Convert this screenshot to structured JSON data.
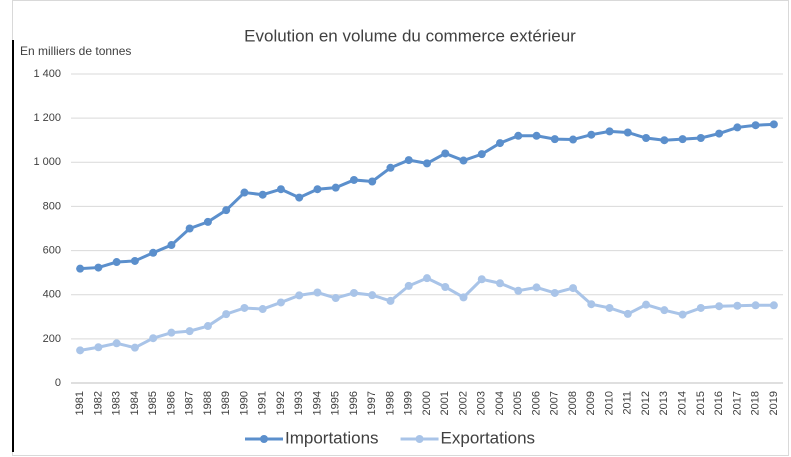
{
  "chart_data": {
    "type": "line",
    "title": "Evolution en volume du commerce extérieur",
    "y_label": "En milliers de tonnes",
    "categories": [
      "1981",
      "1982",
      "1983",
      "1984",
      "1985",
      "1986",
      "1987",
      "1988",
      "1989",
      "1990",
      "1991",
      "1992",
      "1993",
      "1994",
      "1995",
      "1996",
      "1997",
      "1998",
      "1999",
      "2000",
      "2001",
      "2002",
      "2003",
      "2004",
      "2005",
      "2006",
      "2007",
      "2008",
      "2009",
      "2010",
      "2011",
      "2012",
      "2013",
      "2014",
      "2015",
      "2016",
      "2017",
      "2018",
      "2019"
    ],
    "series": [
      {
        "name": "Importations",
        "color": "#5b8fcc",
        "values": [
          518,
          523,
          548,
          553,
          590,
          625,
          700,
          730,
          783,
          863,
          853,
          878,
          840,
          878,
          885,
          920,
          913,
          975,
          1010,
          995,
          1040,
          1008,
          1037,
          1087,
          1120,
          1120,
          1105,
          1103,
          1125,
          1140,
          1135,
          1110,
          1100,
          1105,
          1110,
          1130,
          1158,
          1168,
          1172
        ]
      },
      {
        "name": "Exportations",
        "color": "#a9c4e8",
        "values": [
          148,
          162,
          180,
          160,
          203,
          228,
          235,
          258,
          312,
          340,
          335,
          365,
          397,
          410,
          385,
          408,
          398,
          372,
          440,
          475,
          435,
          388,
          470,
          452,
          418,
          433,
          408,
          430,
          357,
          340,
          313,
          355,
          330,
          310,
          340,
          348,
          350,
          352,
          352
        ]
      }
    ],
    "ylim": [
      0,
      1400
    ],
    "yticks": [
      0,
      {
        "value": 200,
        "label": "200"
      },
      {
        "value": 400,
        "label": "400"
      },
      {
        "value": 600,
        "label": "600"
      },
      {
        "value": 800,
        "label": "800"
      },
      {
        "value": 1000,
        "label": "1 000"
      },
      {
        "value": 1200,
        "label": "1 200"
      },
      {
        "value": 1400,
        "label": "1 400"
      }
    ],
    "grid": true,
    "legend": "bottom"
  }
}
